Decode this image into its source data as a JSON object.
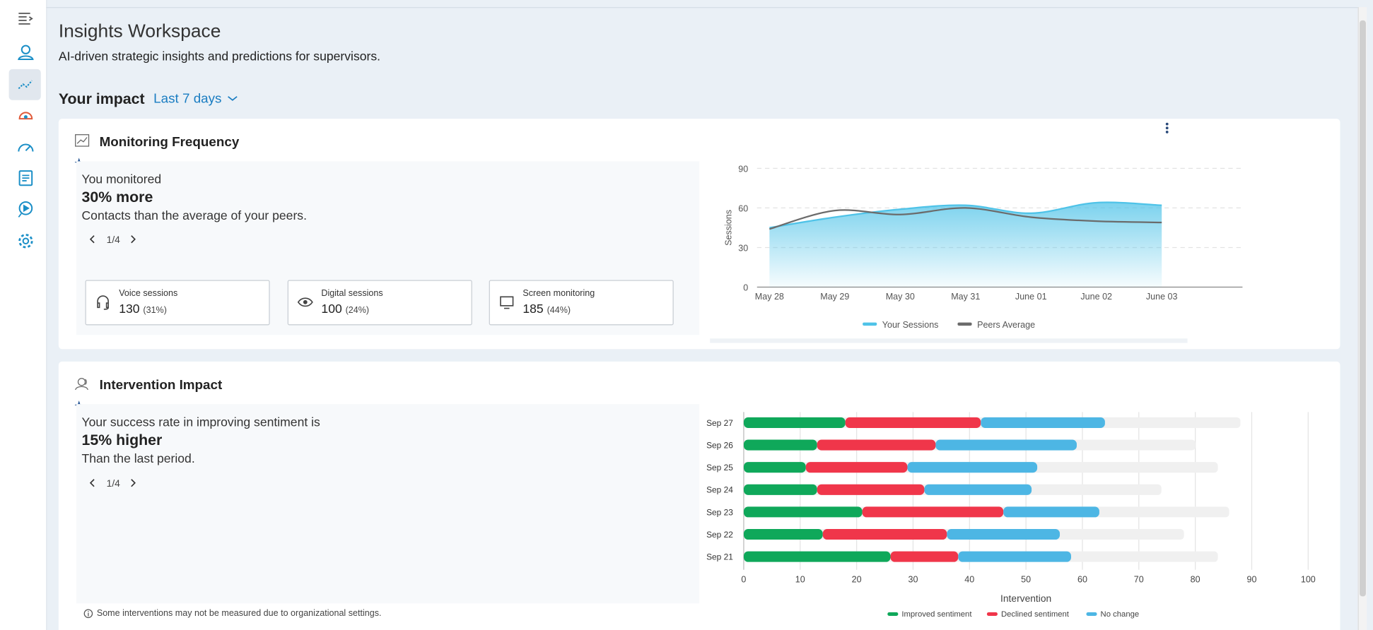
{
  "header": {
    "title": "Insights Workspace",
    "subtitle": "AI-driven strategic insights and predictions for supervisors."
  },
  "impact": {
    "label": "Your impact",
    "period": "Last 7 days"
  },
  "monitoring": {
    "title": "Monitoring Frequency",
    "insight": {
      "intro": "You monitored",
      "highlight": "30% more",
      "detail": "Contacts than the average of your peers.",
      "pager": "1/4"
    },
    "stats": [
      {
        "label": "Voice sessions",
        "value": 130,
        "share": "(31%)"
      },
      {
        "label": "Digital sessions",
        "value": 100,
        "share": "(24%)"
      },
      {
        "label": "Screen monitoring",
        "value": 185,
        "share": "(44%)"
      }
    ],
    "chart": {
      "type": "line",
      "ylabel": "Sessions",
      "categories": [
        "May 28",
        "May 29",
        "May 30",
        "May 31",
        "June 01",
        "June 02",
        "June 03"
      ],
      "series": [
        {
          "name": "Your Sessions",
          "color": "#4fc3e8",
          "area": true,
          "values": [
            45,
            53,
            59,
            62,
            56,
            64,
            62
          ]
        },
        {
          "name": "Peers Average",
          "color": "#6b6b6b",
          "area": false,
          "values": [
            44,
            58,
            55,
            60,
            53,
            50,
            49
          ]
        }
      ],
      "ylim": [
        0,
        90
      ],
      "yticks": [
        0,
        30,
        60,
        90
      ],
      "grid": true,
      "legend": "bottom"
    }
  },
  "intervention": {
    "title": "Intervention Impact",
    "insight": {
      "intro": "Your success rate in improving sentiment is",
      "highlight": "15% higher",
      "detail": "Than the last period.",
      "pager": "1/4"
    },
    "note": "Some interventions may not be measured due to organizational settings.",
    "chart": {
      "type": "bar",
      "orientation": "horizontal",
      "stacked": true,
      "xlabel": "Intervention",
      "categories": [
        "Sep 27",
        "Sep 26",
        "Sep 25",
        "Sep 24",
        "Sep 23",
        "Sep 22",
        "Sep 21"
      ],
      "series": [
        {
          "name": "Improved sentiment",
          "color": "#0fa85a",
          "values": [
            18,
            13,
            11,
            13,
            21,
            14,
            26
          ]
        },
        {
          "name": "Declined sentiment",
          "color": "#f0364a",
          "values": [
            24,
            21,
            18,
            19,
            25,
            22,
            12
          ]
        },
        {
          "name": "No change",
          "color": "#4db6e4",
          "values": [
            22,
            25,
            23,
            19,
            17,
            20,
            20
          ]
        }
      ],
      "track_values": [
        88,
        80,
        84,
        74,
        86,
        78,
        84
      ],
      "track_color": "#f0f0f0",
      "xlim": [
        0,
        100
      ],
      "xticks": [
        0,
        10,
        20,
        30,
        40,
        50,
        60,
        70,
        80,
        90,
        100
      ],
      "grid": true,
      "legend": "bottom"
    }
  }
}
